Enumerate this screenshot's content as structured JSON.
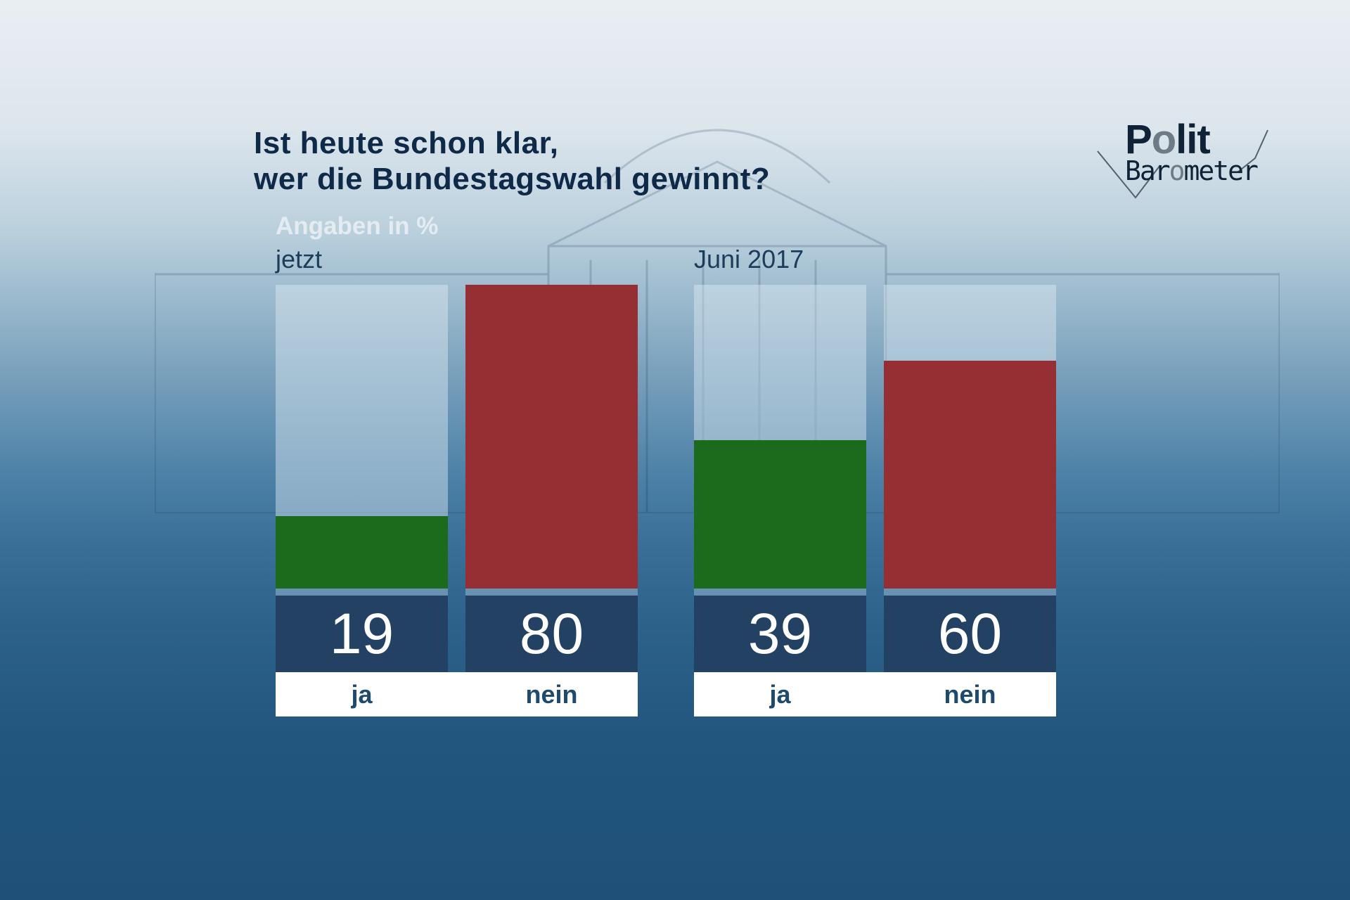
{
  "title": {
    "line1": "Ist heute schon klar,",
    "line2": "wer die Bundestagswahl gewinnt?"
  },
  "logo": {
    "word1a": "P",
    "word1b": "o",
    "word1c": "lit",
    "word2a": "Bar",
    "word2b": "o",
    "word2c": "meter",
    "full": "PolitBarometer"
  },
  "colors": {
    "ja": "#1c6b1c",
    "nein": "#962f33",
    "number_box": "#234263"
  },
  "chart_data": {
    "type": "bar",
    "title": "Ist heute schon klar, wer die Bundestagswahl gewinnt?",
    "subtitle": "Angaben in %",
    "ylim": [
      0,
      80
    ],
    "groups": [
      {
        "name": "jetzt",
        "categories": [
          "ja",
          "nein"
        ],
        "values": [
          19,
          80
        ]
      },
      {
        "name": "Juni 2017",
        "categories": [
          "ja",
          "nein"
        ],
        "values": [
          39,
          60
        ]
      }
    ]
  }
}
